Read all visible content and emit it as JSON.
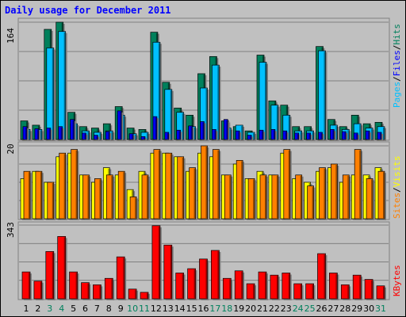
{
  "chart_data": [
    {
      "type": "bar",
      "title": "Daily usage for December 2011",
      "panel": "top",
      "ymax_label": "164",
      "right_label_parts": [
        "Pages",
        "/",
        "Files",
        "/",
        "Hits"
      ],
      "categories": [
        "1",
        "2",
        "3",
        "4",
        "5",
        "6",
        "7",
        "8",
        "9",
        "10",
        "11",
        "12",
        "13",
        "14",
        "15",
        "16",
        "17",
        "18",
        "19",
        "20",
        "21",
        "22",
        "23",
        "24",
        "25",
        "26",
        "27",
        "28",
        "29",
        "30",
        "31"
      ],
      "weekend_days": [
        "3",
        "4",
        "10",
        "11",
        "17",
        "18",
        "24",
        "25",
        "31"
      ],
      "ylim": [
        0,
        164
      ],
      "series": [
        {
          "name": "Hits",
          "values": [
            26,
            20,
            154,
            164,
            38,
            18,
            16,
            22,
            46,
            16,
            14,
            150,
            80,
            44,
            34,
            92,
            116,
            26,
            18,
            12,
            118,
            54,
            48,
            18,
            18,
            130,
            28,
            18,
            34,
            22,
            24
          ]
        },
        {
          "name": "Files",
          "values": [
            14,
            14,
            128,
            151,
            22,
            12,
            10,
            12,
            34,
            8,
            10,
            136,
            70,
            38,
            18,
            72,
            104,
            16,
            20,
            10,
            108,
            48,
            34,
            12,
            12,
            124,
            20,
            14,
            22,
            16,
            18
          ]
        },
        {
          "name": "Pages",
          "values": [
            18,
            15,
            16,
            18,
            28,
            9,
            6,
            11,
            40,
            8,
            4,
            32,
            10,
            13,
            19,
            25,
            14,
            28,
            12,
            6,
            13,
            14,
            12,
            9,
            9,
            10,
            14,
            11,
            9,
            12,
            10
          ]
        }
      ]
    },
    {
      "type": "bar",
      "panel": "middle",
      "ymax_label": "20",
      "right_label_parts": [
        "Sites",
        "/",
        "Visits"
      ],
      "categories": [
        "1",
        "2",
        "3",
        "4",
        "5",
        "6",
        "7",
        "8",
        "9",
        "10",
        "11",
        "12",
        "13",
        "14",
        "15",
        "16",
        "17",
        "18",
        "19",
        "20",
        "21",
        "22",
        "23",
        "24",
        "25",
        "26",
        "27",
        "28",
        "29",
        "30",
        "31"
      ],
      "ylim": [
        0,
        20
      ],
      "series": [
        {
          "name": "Visits",
          "values": [
            11,
            13,
            10,
            17,
            18,
            12,
            10,
            14,
            12,
            8,
            13,
            18,
            18,
            17,
            13,
            18,
            17,
            12,
            15,
            11,
            13,
            12,
            18,
            11,
            10,
            13,
            14,
            10,
            12,
            12,
            14
          ]
        },
        {
          "name": "Sites",
          "values": [
            13,
            13,
            10,
            18,
            19,
            12,
            11,
            12,
            13,
            6,
            12,
            19,
            18,
            17,
            14,
            20,
            19,
            12,
            16,
            11,
            12,
            12,
            19,
            12,
            9,
            14,
            15,
            12,
            19,
            11,
            13
          ]
        }
      ]
    },
    {
      "type": "bar",
      "panel": "bottom",
      "ymax_label": "343",
      "right_label_parts": [
        "KBytes"
      ],
      "categories": [
        "1",
        "2",
        "3",
        "4",
        "5",
        "6",
        "7",
        "8",
        "9",
        "10",
        "11",
        "12",
        "13",
        "14",
        "15",
        "16",
        "17",
        "18",
        "19",
        "20",
        "21",
        "22",
        "23",
        "24",
        "25",
        "26",
        "27",
        "28",
        "29",
        "30",
        "31"
      ],
      "ylim": [
        0,
        343
      ],
      "series": [
        {
          "name": "KBytes",
          "values": [
            125,
            82,
            220,
            290,
            125,
            75,
            65,
            95,
            195,
            45,
            30,
            340,
            250,
            120,
            140,
            185,
            225,
            95,
            130,
            70,
            125,
            110,
            120,
            70,
            70,
            210,
            120,
            65,
            110,
            90,
            60
          ]
        }
      ]
    }
  ],
  "colors": {
    "hits": "#00805c",
    "files": "#00c0ff",
    "pages": "#0000ff",
    "visits": "#ffff00",
    "sites": "#ff8000",
    "kbytes": "#ff0000",
    "weekday_label": "#000000",
    "weekend_label": "#00805c"
  }
}
